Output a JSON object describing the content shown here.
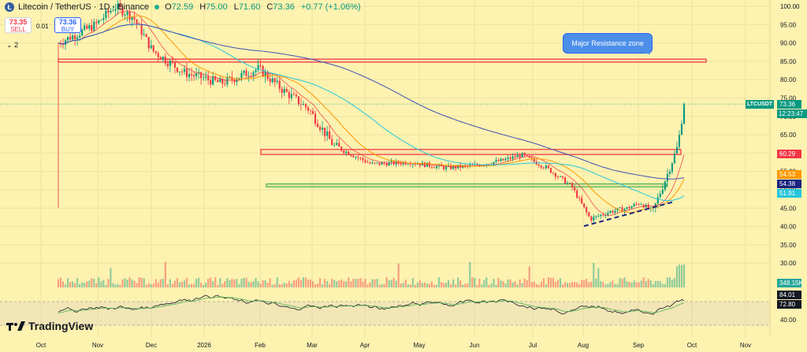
{
  "header": {
    "pair_label": "Litecoin / TetherUS · 1D · Binance",
    "o_label": "O",
    "o_val": "72.59",
    "h_label": "H",
    "h_val": "75.00",
    "l_label": "L",
    "l_val": "71.60",
    "c_label": "C",
    "c_val": "73.36",
    "change": "+0.77 (+1.06%)"
  },
  "trade": {
    "sell_price": "73.35",
    "sell_label": "SELL",
    "spread": "0.01",
    "buy_price": "73.36",
    "buy_label": "BUY",
    "indicator_count": "2"
  },
  "logo": {
    "text": "TradingView"
  },
  "annotation": {
    "text": "Major Resistance zone"
  },
  "price_scale": {
    "symbol": "LTCUSDT",
    "last": "73.36",
    "countdown": "12:23:47",
    "ma_tags": [
      {
        "value": "60.29",
        "color": "#f23645"
      },
      {
        "value": "54.53",
        "color": "#ff9800"
      },
      {
        "value": "54.38",
        "color": "#1a237e"
      },
      {
        "value": "51.91",
        "color": "#26c6da"
      }
    ],
    "volume_tag": "348.15K",
    "rsi_tags": [
      {
        "value": "84.01",
        "color": "#131722"
      },
      {
        "value": "72.80",
        "color": "#131722"
      }
    ]
  },
  "colors": {
    "background": "#fdf2b0",
    "up": "#089981",
    "down": "#f23645",
    "resistance": "#f23645",
    "support": "#4caf50",
    "trendline": "#1a237e"
  },
  "chart_data": {
    "type": "candlestick",
    "x_ticks": [
      "Oct",
      "Nov",
      "Dec",
      "2026",
      "Feb",
      "Mar",
      "Apr",
      "May",
      "Jun",
      "Jul",
      "Aug",
      "Sep",
      "Oct",
      "Nov"
    ],
    "y_ticks": [
      100.0,
      95.0,
      90.0,
      85.0,
      80.0,
      75.0,
      70.0,
      65.0,
      60.0,
      55.0,
      50.0,
      45.0,
      40.0,
      35.0,
      30.0
    ],
    "rsi_ticks": [
      40.0
    ],
    "ylim": [
      30,
      101
    ],
    "price_path": [
      [
        0,
        90
      ],
      [
        0.06,
        95
      ],
      [
        0.09,
        100
      ],
      [
        0.12,
        97
      ],
      [
        0.15,
        88
      ],
      [
        0.2,
        82
      ],
      [
        0.26,
        79
      ],
      [
        0.32,
        83
      ],
      [
        0.36,
        77
      ],
      [
        0.4,
        72
      ],
      [
        0.44,
        62
      ],
      [
        0.5,
        57
      ],
      [
        0.56,
        57.5
      ],
      [
        0.62,
        56
      ],
      [
        0.66,
        56.5
      ],
      [
        0.71,
        58
      ],
      [
        0.74,
        59.5
      ],
      [
        0.78,
        56
      ],
      [
        0.82,
        51
      ],
      [
        0.85,
        42
      ],
      [
        0.88,
        44
      ],
      [
        0.91,
        45
      ],
      [
        0.93,
        46.5
      ],
      [
        0.95,
        44
      ],
      [
        0.975,
        55
      ],
      [
        0.99,
        62
      ],
      [
        1.0,
        73.36
      ]
    ],
    "resistance_zone": [
      84.8,
      85.6
    ],
    "range_high": [
      59.6,
      61.0
    ],
    "range_low": [
      50.8,
      51.6
    ],
    "trendline": [
      [
        0.84,
        40.1
      ],
      [
        0.985,
        46.8
      ]
    ],
    "last_price": 73.36,
    "volume_last": "348.15K"
  }
}
